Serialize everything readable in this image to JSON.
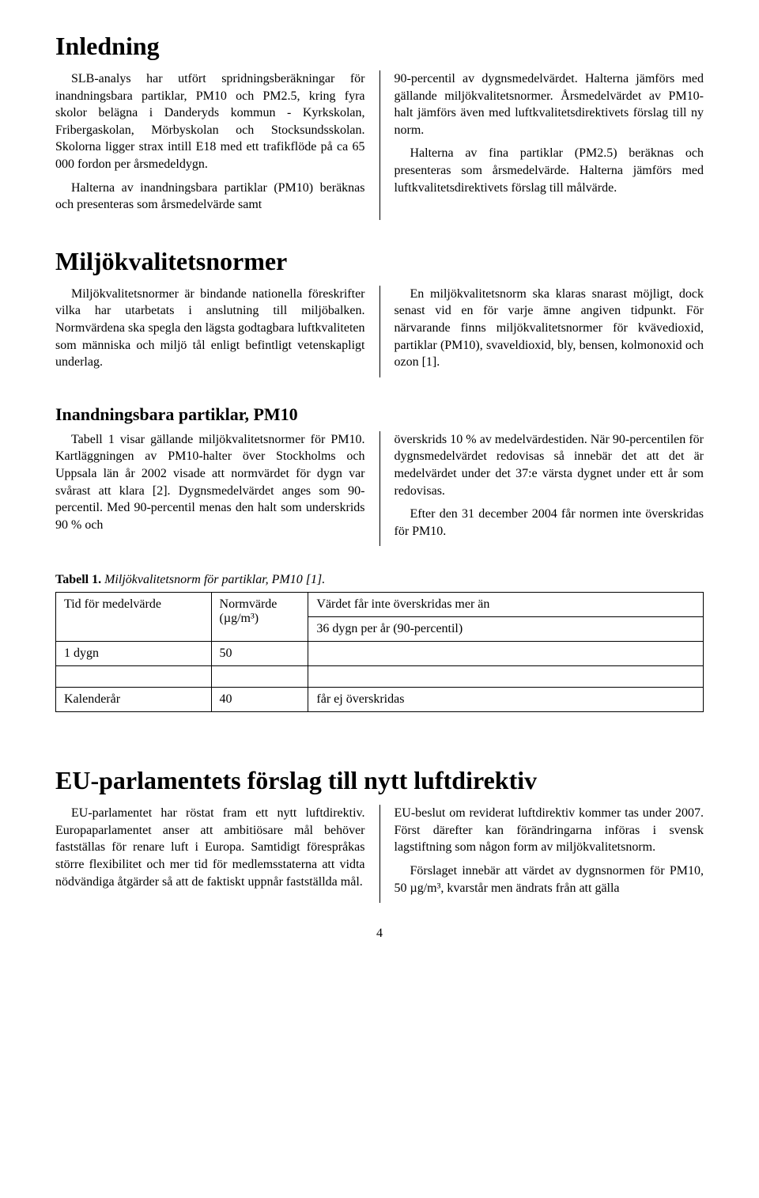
{
  "page_number": "4",
  "sec_inledning": {
    "title": "Inledning",
    "left": [
      "SLB-analys har utfört spridningsberäkningar för inandningsbara partiklar, PM10 och PM2.5, kring fyra skolor belägna i Danderyds kommun - Kyrkskolan, Fribergaskolan, Mörbyskolan och Stocksundsskolan. Skolorna ligger strax intill E18 med ett trafikflöde på ca 65 000 fordon per årsmedeldygn.",
      "Halterna av inandningsbara partiklar (PM10) beräknas och presenteras som årsmedelvärde samt"
    ],
    "right": [
      "90-percentil av dygnsmedelvärdet. Halterna jämförs med gällande miljökvalitetsnormer. Årsmedelvärdet av PM10-halt jämförs även med luftkvalitetsdirektivets förslag till ny norm.",
      "Halterna av fina partiklar (PM2.5) beräknas och presenteras som årsmedelvärde. Halterna jämförs med luftkvalitetsdirektivets förslag till målvärde."
    ]
  },
  "sec_mkn": {
    "title": "Miljökvalitetsnormer",
    "left": [
      "Miljökvalitetsnormer är bindande nationella föreskrifter vilka har utarbetats i anslutning till miljöbalken. Normvärdena ska spegla den lägsta godtagbara luftkvaliteten som människa och miljö tål enligt befintligt vetenskapligt underlag."
    ],
    "right": [
      "En miljökvalitetsnorm ska klaras snarast möjligt, dock senast vid en för varje ämne angiven tidpunkt. För närvarande finns miljökvalitetsnormer för kvävedioxid, partiklar (PM10), svaveldioxid, bly, bensen, kolmonoxid och ozon [1]."
    ]
  },
  "sec_pm10": {
    "title": "Inandningsbara partiklar, PM10",
    "left": [
      "Tabell 1 visar gällande miljökvalitetsnormer för PM10. Kartläggningen av PM10-halter över Stockholms och Uppsala län år 2002 visade att normvärdet för dygn var svårast att klara [2]. Dygnsmedelvärdet anges som 90-percentil. Med 90-percentil menas den halt som underskrids 90 % och"
    ],
    "right": [
      "överskrids 10 % av medelvärdestiden. När 90-percentilen för dygnsmedelvärdet redovisas så innebär det att det är medelvärdet under det 37:e värsta dygnet under ett år som redovisas.",
      "Efter den 31 december 2004 får normen inte överskridas för PM10."
    ]
  },
  "table1": {
    "caption_bold": "Tabell 1.",
    "caption_rest": " Miljökvalitetsnorm för partiklar, PM10 [1].",
    "headers": [
      "Tid för medelvärde",
      "Normvärde (µg/m³)",
      "Värdet får inte överskridas mer än"
    ],
    "header_norm_line1": "Normvärde",
    "header_norm_line2": "(µg/m³)",
    "rows": [
      {
        "c0": "1 dygn",
        "c1": "50",
        "c2": "36 dygn per år (90-percentil)"
      },
      {
        "c0": "Kalenderår",
        "c1": "40",
        "c2": "får ej överskridas"
      }
    ],
    "col_widths_pct": [
      24,
      15,
      61
    ]
  },
  "sec_eu": {
    "title": "EU-parlamentets förslag till nytt luftdirektiv",
    "left": [
      "EU-parlamentet har röstat fram ett nytt luftdirektiv. Europaparlamentet anser att ambitiösare mål behöver fastställas för renare luft i Europa. Samtidigt förespråkas större flexibilitet och mer tid för medlemsstaterna att vidta nödvändiga åtgärder så att de faktiskt uppnår fastställda mål."
    ],
    "right": [
      "EU-beslut om reviderat luftdirektiv kommer tas under 2007. Först därefter kan förändringarna införas i svensk lagstiftning som någon form av miljökvalitetsnorm.",
      "Förslaget innebär att värdet av dygnsnormen för PM10, 50 µg/m³, kvarstår men ändrats från att gälla"
    ]
  }
}
